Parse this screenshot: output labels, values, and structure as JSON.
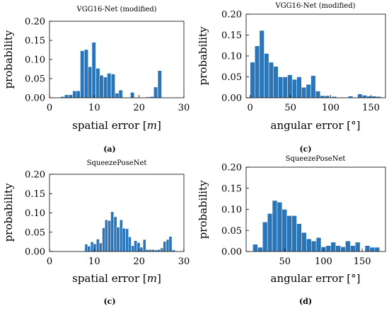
{
  "colors": {
    "bar": "#2a75b8",
    "background": "#ffffff",
    "axis": "#000000"
  },
  "chart_data": [
    {
      "type": "bar",
      "title": "VGG16-Net (modified)",
      "caption": "(a)",
      "xlabel": "spatial error [m]",
      "xlabel_parts": [
        "spatial error [",
        "m",
        "]"
      ],
      "ylabel": "probability",
      "xlim": [
        0,
        30
      ],
      "ylim": [
        0,
        0.2
      ],
      "xticks": [
        0,
        10,
        20,
        30
      ],
      "yticks": [
        0,
        0.05,
        0.1,
        0.15,
        0.2
      ],
      "ytick_labels": [
        "0.00",
        "0.05",
        "0.10",
        "0.15",
        "0.20"
      ],
      "bin_width": 0.86,
      "bins": [
        {
          "x": 2.9,
          "y": 0.003
        },
        {
          "x": 3.8,
          "y": 0.008
        },
        {
          "x": 4.7,
          "y": 0.008
        },
        {
          "x": 5.6,
          "y": 0.018
        },
        {
          "x": 6.4,
          "y": 0.018
        },
        {
          "x": 7.3,
          "y": 0.123
        },
        {
          "x": 8.2,
          "y": 0.126
        },
        {
          "x": 9.0,
          "y": 0.081
        },
        {
          "x": 9.9,
          "y": 0.145
        },
        {
          "x": 10.8,
          "y": 0.077
        },
        {
          "x": 11.6,
          "y": 0.059
        },
        {
          "x": 12.5,
          "y": 0.054
        },
        {
          "x": 13.3,
          "y": 0.064
        },
        {
          "x": 14.2,
          "y": 0.062
        },
        {
          "x": 15.1,
          "y": 0.012
        },
        {
          "x": 15.9,
          "y": 0.02
        },
        {
          "x": 18.5,
          "y": 0.014
        },
        {
          "x": 22.0,
          "y": 0.002
        },
        {
          "x": 22.9,
          "y": 0.003
        },
        {
          "x": 23.7,
          "y": 0.028
        },
        {
          "x": 24.6,
          "y": 0.071
        }
      ]
    },
    {
      "type": "bar",
      "title": "VGG16-Net (modified)",
      "caption": "(c)",
      "xlabel": "angular error [°]",
      "xlabel_parts": [
        "angular error [°]"
      ],
      "ylabel": "probability",
      "xlim": [
        -5,
        168
      ],
      "ylim": [
        0,
        0.2
      ],
      "xticks": [
        0,
        50,
        100,
        150
      ],
      "yticks": [
        0,
        0.05,
        0.1,
        0.15,
        0.2
      ],
      "ytick_labels": [
        "0.00",
        "0.05",
        "0.10",
        "0.15",
        "0.20"
      ],
      "bin_width": 5.8,
      "bins": [
        {
          "x": 2.9,
          "y": 0.085
        },
        {
          "x": 8.7,
          "y": 0.124
        },
        {
          "x": 14.5,
          "y": 0.161
        },
        {
          "x": 20.3,
          "y": 0.106
        },
        {
          "x": 26.1,
          "y": 0.085
        },
        {
          "x": 31.9,
          "y": 0.075
        },
        {
          "x": 37.7,
          "y": 0.05
        },
        {
          "x": 43.5,
          "y": 0.05
        },
        {
          "x": 49.3,
          "y": 0.055
        },
        {
          "x": 55.1,
          "y": 0.044
        },
        {
          "x": 60.9,
          "y": 0.05
        },
        {
          "x": 66.7,
          "y": 0.025
        },
        {
          "x": 72.5,
          "y": 0.032
        },
        {
          "x": 78.3,
          "y": 0.053
        },
        {
          "x": 84.1,
          "y": 0.016
        },
        {
          "x": 89.9,
          "y": 0.005
        },
        {
          "x": 95.7,
          "y": 0.005
        },
        {
          "x": 104.4,
          "y": 0.003
        },
        {
          "x": 124.7,
          "y": 0.004
        },
        {
          "x": 136.3,
          "y": 0.009
        },
        {
          "x": 142.1,
          "y": 0.006
        },
        {
          "x": 147.9,
          "y": 0.004
        },
        {
          "x": 153.7,
          "y": 0.004
        },
        {
          "x": 159.5,
          "y": 0.003
        }
      ]
    },
    {
      "type": "bar",
      "title": "SqueezePoseNet",
      "caption": "(c)",
      "xlabel": "spatial error [m]",
      "xlabel_parts": [
        "spatial error [",
        "m",
        "]"
      ],
      "ylabel": "probability",
      "xlim": [
        0,
        30
      ],
      "ylim": [
        0,
        0.2
      ],
      "xticks": [
        0,
        10,
        20,
        30
      ],
      "yticks": [
        0,
        0.05,
        0.1,
        0.15,
        0.2
      ],
      "ytick_labels": [
        "0.00",
        "0.05",
        "0.10",
        "0.15",
        "0.20"
      ],
      "bin_width": 0.66,
      "bins": [
        {
          "x": 8.2,
          "y": 0.019
        },
        {
          "x": 8.8,
          "y": 0.014
        },
        {
          "x": 9.5,
          "y": 0.025
        },
        {
          "x": 10.1,
          "y": 0.02
        },
        {
          "x": 10.8,
          "y": 0.032
        },
        {
          "x": 11.4,
          "y": 0.022
        },
        {
          "x": 12.1,
          "y": 0.061
        },
        {
          "x": 12.7,
          "y": 0.082
        },
        {
          "x": 13.4,
          "y": 0.08
        },
        {
          "x": 14.0,
          "y": 0.103
        },
        {
          "x": 14.7,
          "y": 0.09
        },
        {
          "x": 15.3,
          "y": 0.063
        },
        {
          "x": 16.0,
          "y": 0.082
        },
        {
          "x": 16.6,
          "y": 0.06
        },
        {
          "x": 17.3,
          "y": 0.059
        },
        {
          "x": 17.9,
          "y": 0.038
        },
        {
          "x": 18.6,
          "y": 0.015
        },
        {
          "x": 19.2,
          "y": 0.028
        },
        {
          "x": 19.9,
          "y": 0.023
        },
        {
          "x": 20.5,
          "y": 0.011
        },
        {
          "x": 21.2,
          "y": 0.031
        },
        {
          "x": 21.8,
          "y": 0.005
        },
        {
          "x": 22.5,
          "y": 0.005
        },
        {
          "x": 23.1,
          "y": 0.005
        },
        {
          "x": 23.8,
          "y": 0.004
        },
        {
          "x": 24.4,
          "y": 0.005
        },
        {
          "x": 25.1,
          "y": 0.009
        },
        {
          "x": 25.7,
          "y": 0.026
        },
        {
          "x": 26.4,
          "y": 0.031
        },
        {
          "x": 27.0,
          "y": 0.039
        },
        {
          "x": 27.7,
          "y": 0.004
        }
      ]
    },
    {
      "type": "bar",
      "title": "SqueezePoseNet",
      "caption": "(d)",
      "xlabel": "angular error [°]",
      "xlabel_parts": [
        "angular error [°]"
      ],
      "ylabel": "probability",
      "xlim": [
        0,
        180
      ],
      "ylim": [
        0,
        0.2
      ],
      "xticks": [
        50,
        100,
        150
      ],
      "yticks": [
        0,
        0.05,
        0.1,
        0.15,
        0.2
      ],
      "ytick_labels": [
        "0.00",
        "0.05",
        "0.10",
        "0.15",
        "0.20"
      ],
      "bin_width": 6.3,
      "bins": [
        {
          "x": 11.8,
          "y": 0.017
        },
        {
          "x": 18.1,
          "y": 0.01
        },
        {
          "x": 24.4,
          "y": 0.07
        },
        {
          "x": 30.7,
          "y": 0.09
        },
        {
          "x": 37.0,
          "y": 0.121
        },
        {
          "x": 43.3,
          "y": 0.117
        },
        {
          "x": 49.6,
          "y": 0.1
        },
        {
          "x": 55.9,
          "y": 0.085
        },
        {
          "x": 62.2,
          "y": 0.085
        },
        {
          "x": 68.5,
          "y": 0.066
        },
        {
          "x": 74.8,
          "y": 0.045
        },
        {
          "x": 81.1,
          "y": 0.03
        },
        {
          "x": 87.4,
          "y": 0.025
        },
        {
          "x": 93.7,
          "y": 0.033
        },
        {
          "x": 100.0,
          "y": 0.011
        },
        {
          "x": 106.3,
          "y": 0.014
        },
        {
          "x": 112.6,
          "y": 0.022
        },
        {
          "x": 118.9,
          "y": 0.014
        },
        {
          "x": 125.2,
          "y": 0.011
        },
        {
          "x": 131.5,
          "y": 0.025
        },
        {
          "x": 137.8,
          "y": 0.014
        },
        {
          "x": 144.1,
          "y": 0.022
        },
        {
          "x": 156.7,
          "y": 0.014
        },
        {
          "x": 163.0,
          "y": 0.01
        },
        {
          "x": 169.3,
          "y": 0.01
        }
      ]
    }
  ]
}
